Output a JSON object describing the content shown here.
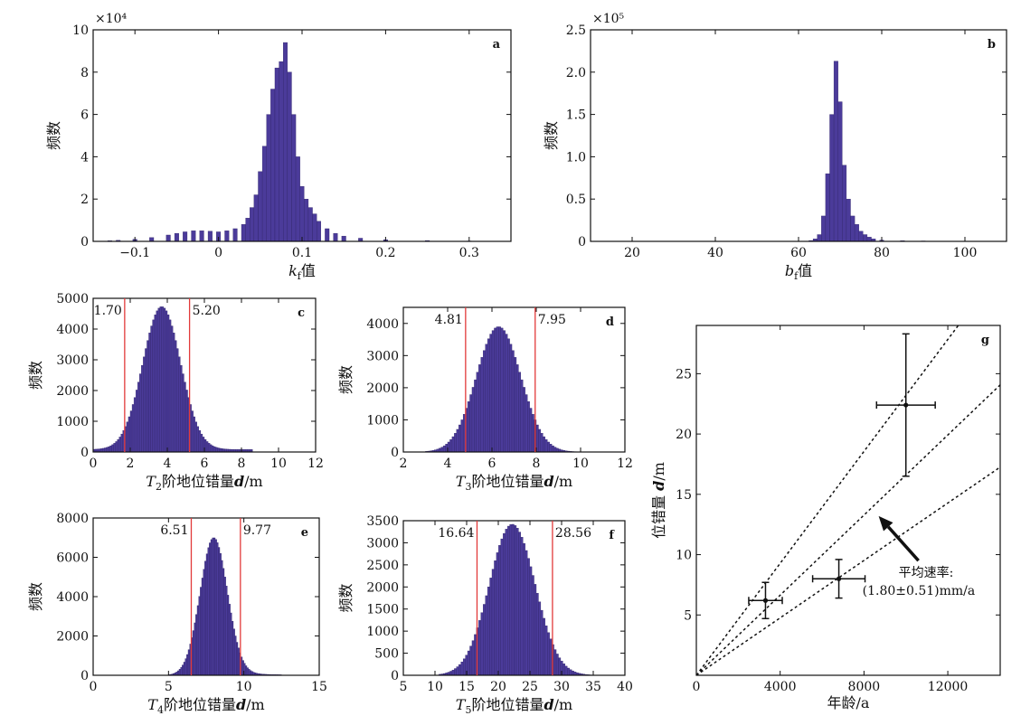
{
  "chart_data": [
    {
      "id": "a",
      "type": "bar",
      "panel_label": "a",
      "xlabel": "k_f值",
      "xlabel_main": "k",
      "xlabel_sub": "f",
      "xlabel_suffix": "值",
      "ylabel": "频数",
      "y_exponent": "×10⁴",
      "xlim": [
        -0.15,
        0.35
      ],
      "ylim": [
        0,
        10
      ],
      "xticks": [
        -0.1,
        0,
        0.1,
        0.2,
        0.3
      ],
      "xtick_labels": [
        "−0.1",
        "0",
        "0.1",
        "0.2",
        "0.3"
      ],
      "yticks": [
        0,
        2,
        4,
        6,
        8,
        10
      ],
      "ytick_labels": [
        "0",
        "2",
        "4",
        "6",
        "8",
        "10"
      ],
      "bin_width": 0.005,
      "x": [
        -0.13,
        -0.12,
        -0.1,
        -0.08,
        -0.06,
        -0.05,
        -0.04,
        -0.03,
        -0.02,
        -0.01,
        0,
        0.01,
        0.02,
        0.03,
        0.035,
        0.04,
        0.045,
        0.05,
        0.055,
        0.06,
        0.065,
        0.07,
        0.075,
        0.08,
        0.085,
        0.09,
        0.095,
        0.1,
        0.105,
        0.11,
        0.115,
        0.12,
        0.13,
        0.14,
        0.15,
        0.17,
        0.2,
        0.25,
        0.3,
        0.34
      ],
      "values": [
        0.03,
        0.05,
        0.1,
        0.18,
        0.3,
        0.38,
        0.45,
        0.5,
        0.5,
        0.48,
        0.45,
        0.5,
        0.6,
        0.8,
        1.1,
        1.6,
        2.2,
        3.3,
        4.5,
        6.0,
        7.2,
        8.2,
        8.5,
        9.4,
        8.0,
        6.0,
        4.0,
        2.6,
        2.0,
        1.6,
        1.3,
        0.95,
        0.6,
        0.38,
        0.25,
        0.15,
        0.08,
        0.04,
        0.02,
        0.01
      ]
    },
    {
      "id": "b",
      "type": "bar",
      "panel_label": "b",
      "xlabel": "b_f值",
      "xlabel_main": "b",
      "xlabel_sub": "f",
      "xlabel_suffix": "值",
      "ylabel": "频数",
      "y_exponent": "×10⁵",
      "xlim": [
        10,
        110
      ],
      "ylim": [
        0,
        2.5
      ],
      "xticks": [
        20,
        40,
        60,
        80,
        100
      ],
      "xtick_labels": [
        "20",
        "40",
        "60",
        "80",
        "100"
      ],
      "yticks": [
        0,
        0.5,
        1.0,
        1.5,
        2.0,
        2.5
      ],
      "ytick_labels": [
        "0",
        "0.5",
        "1.0",
        "1.5",
        "2.0",
        "2.5"
      ],
      "bin_width": 1,
      "x": [
        63,
        64,
        65,
        66,
        67,
        68,
        69,
        70,
        71,
        72,
        73,
        74,
        75,
        76,
        77,
        78,
        80,
        85,
        90
      ],
      "values": [
        0.01,
        0.03,
        0.08,
        0.3,
        0.8,
        1.5,
        2.13,
        1.65,
        0.9,
        0.5,
        0.3,
        0.2,
        0.12,
        0.08,
        0.05,
        0.03,
        0.015,
        0.008,
        0.005
      ]
    },
    {
      "id": "c",
      "type": "bar",
      "panel_label": "c",
      "xlabel": "T_2阶地位错量d/m",
      "xlabel_main": "T",
      "xlabel_sub": "2",
      "xlabel_suffix": "阶地位错量",
      "xlabel_var": "d",
      "xlabel_unit": "/m",
      "ylabel": "频数",
      "xlim": [
        0,
        12
      ],
      "ylim": [
        0,
        5000
      ],
      "xticks": [
        0,
        2,
        4,
        6,
        8,
        10,
        12
      ],
      "xtick_labels": [
        "0",
        "2",
        "4",
        "6",
        "8",
        "10",
        "12"
      ],
      "yticks": [
        0,
        1000,
        2000,
        3000,
        4000,
        5000
      ],
      "ytick_labels": [
        "0",
        "1000",
        "2000",
        "3000",
        "4000",
        "5000"
      ],
      "bin_width": 0.1,
      "normal": {
        "mean": 3.7,
        "sd": 1.02,
        "peak": 4650,
        "baseline": 80,
        "min_x": 0.05,
        "max_x": 8.6
      },
      "bounds": [
        1.7,
        5.2
      ],
      "bound_labels": [
        "1.70",
        "5.20"
      ]
    },
    {
      "id": "d",
      "type": "bar",
      "panel_label": "d",
      "xlabel": "T_3阶地位错量d/m",
      "xlabel_main": "T",
      "xlabel_sub": "3",
      "xlabel_suffix": "阶地位错量",
      "xlabel_var": "d",
      "xlabel_unit": "/m",
      "ylabel": "频数",
      "xlim": [
        2,
        12
      ],
      "ylim": [
        0,
        4500
      ],
      "xticks": [
        2,
        4,
        6,
        8,
        10,
        12
      ],
      "xtick_labels": [
        "2",
        "4",
        "6",
        "8",
        "10",
        "12"
      ],
      "yticks": [
        0,
        1000,
        2000,
        3000,
        4000
      ],
      "ytick_labels": [
        "0",
        "1000",
        "2000",
        "3000",
        "4000"
      ],
      "bin_width": 0.1,
      "normal": {
        "mean": 6.3,
        "sd": 1.0,
        "peak": 3900,
        "baseline": 0,
        "min_x": 3.0,
        "max_x": 9.9
      },
      "bounds": [
        4.81,
        7.95
      ],
      "bound_labels": [
        "4.81",
        "7.95"
      ]
    },
    {
      "id": "e",
      "type": "bar",
      "panel_label": "e",
      "xlabel": "T_4阶地位错量d/m",
      "xlabel_main": "T",
      "xlabel_sub": "4",
      "xlabel_suffix": "阶地位错量",
      "xlabel_var": "d",
      "xlabel_unit": "/m",
      "ylabel": "频数",
      "xlim": [
        0,
        15
      ],
      "ylim": [
        0,
        8000
      ],
      "xticks": [
        0,
        5,
        10,
        15
      ],
      "xtick_labels": [
        "0",
        "5",
        "10",
        "15"
      ],
      "yticks": [
        0,
        2000,
        4000,
        6000,
        8000
      ],
      "ytick_labels": [
        "0",
        "2000",
        "4000",
        "6000",
        "8000"
      ],
      "bin_width": 0.1,
      "normal": {
        "mean": 8.0,
        "sd": 0.9,
        "peak": 7000,
        "baseline": 0,
        "min_x": 5.0,
        "max_x": 12.5,
        "right_tail": 250
      },
      "bounds": [
        6.51,
        9.77
      ],
      "bound_labels": [
        "6.51",
        "9.77"
      ]
    },
    {
      "id": "f",
      "type": "bar",
      "panel_label": "f",
      "xlabel": "T_5阶地位错量d/m",
      "xlabel_main": "T",
      "xlabel_sub": "5",
      "xlabel_suffix": "阶地位错量",
      "xlabel_var": "d",
      "xlabel_unit": "/m",
      "ylabel": "频数",
      "xlim": [
        5,
        40
      ],
      "ylim": [
        0,
        3500
      ],
      "xticks": [
        5,
        10,
        15,
        20,
        25,
        30,
        35,
        40
      ],
      "xtick_labels": [
        "5",
        "10",
        "15",
        "20",
        "25",
        "30",
        "35",
        "40"
      ],
      "yticks": [
        0,
        500,
        1000,
        1500,
        2000,
        2500,
        3000,
        3500
      ],
      "ytick_labels": [
        "0",
        "500",
        "1000",
        "1500",
        "2000",
        "2500",
        "3000",
        "3500"
      ],
      "bin_width": 0.35,
      "normal": {
        "mean": 22.2,
        "sd": 3.6,
        "peak": 3420,
        "baseline": 0,
        "min_x": 10.5,
        "max_x": 36
      },
      "bounds": [
        16.64,
        28.56
      ],
      "bound_labels": [
        "16.64",
        "28.56"
      ]
    },
    {
      "id": "g",
      "type": "scatter",
      "panel_label": "g",
      "xlabel": "年龄/a",
      "xlabel_text": "年龄",
      "xlabel_unit": "/a",
      "ylabel": "位错量 d/m",
      "ylabel_text": "位错量",
      "ylabel_var": "d",
      "ylabel_unit": "/m",
      "xlim": [
        0,
        14500
      ],
      "ylim": [
        0,
        29
      ],
      "xticks": [
        0,
        4000,
        8000,
        12000
      ],
      "xtick_labels": [
        "0",
        "4000",
        "8000",
        "12000"
      ],
      "yticks": [
        5,
        10,
        15,
        20,
        25
      ],
      "ytick_labels": [
        "5",
        "10",
        "15",
        "20",
        "25"
      ],
      "points": [
        {
          "x": 3300,
          "y": 6.2,
          "xerr": 800,
          "yerr": 1.5
        },
        {
          "x": 6800,
          "y": 8.0,
          "xerr": 1250,
          "yerr": 1.6
        },
        {
          "x": 10000,
          "y": 22.4,
          "xerr": 1400,
          "yerr": 5.9
        }
      ],
      "rate_lines": [
        {
          "slope": 0.00119
        },
        {
          "slope": 0.00166
        },
        {
          "slope": 0.00232
        }
      ],
      "annotation_line1": "平均速率:",
      "annotation_line2": "(1.80±0.51)mm/a",
      "arrow_from": [
        10600,
        9.5
      ],
      "arrow_to": [
        8700,
        13.2
      ]
    }
  ],
  "colors": {
    "bar_fill": "#4b3b9a",
    "bar_stroke": "#2d2166",
    "bound_line": "#e23a3a",
    "axis": "#111111"
  }
}
